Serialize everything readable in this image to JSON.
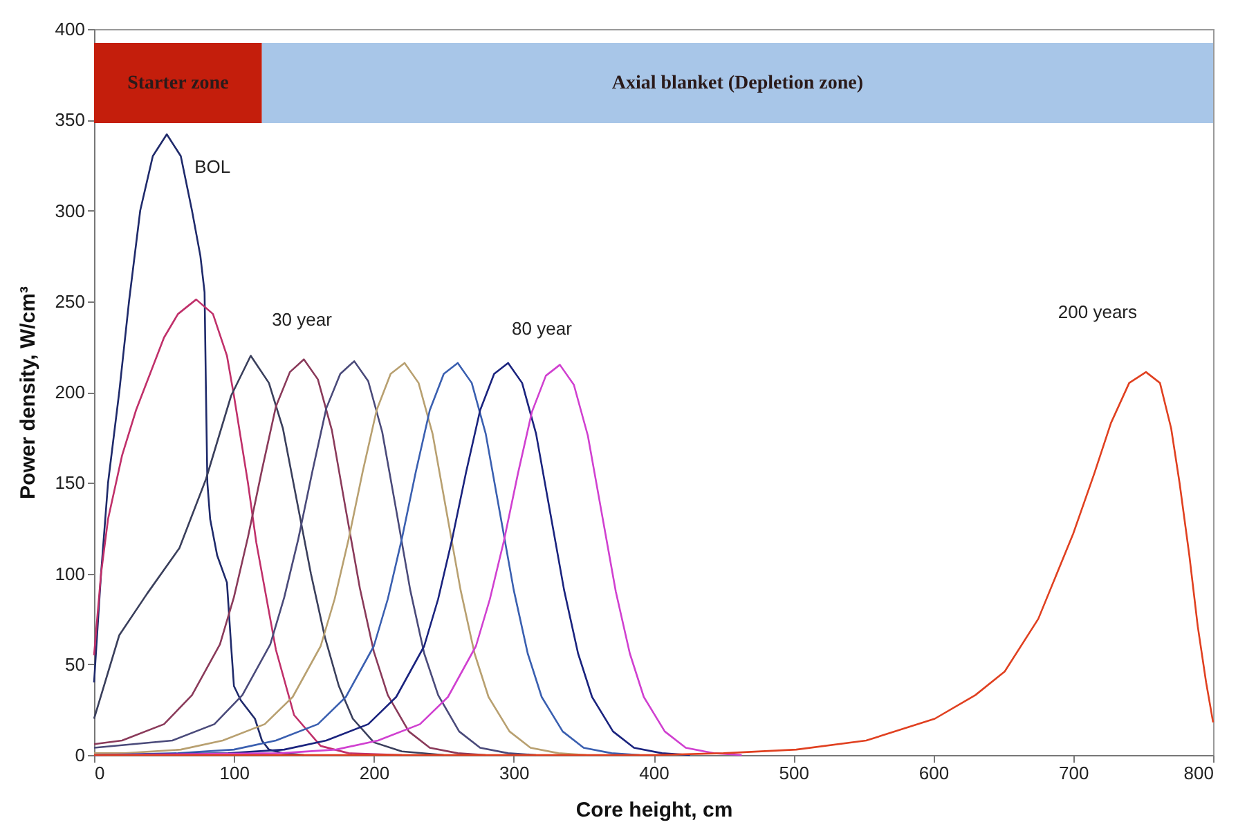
{
  "chart_data": {
    "type": "line",
    "xlabel": "Core height, cm",
    "ylabel": "Power density, W/cm³",
    "xlim": [
      0,
      800
    ],
    "xticks": [
      0,
      100,
      200,
      300,
      400,
      500,
      600,
      700,
      800
    ],
    "ylim": [
      0,
      400
    ],
    "yticks": [
      0,
      50,
      100,
      150,
      200,
      250,
      300,
      350,
      400
    ],
    "grid": false,
    "marker": "none",
    "line_style": "solid",
    "bands": [
      {
        "axis": "x",
        "from": 0,
        "to": 120,
        "label": "Starter zone",
        "color": "#c41e0c"
      },
      {
        "axis": "x",
        "from": 120,
        "to": 800,
        "label": "Axial blanket (Depletion zone)",
        "color": "#a8c6e8"
      }
    ],
    "annotations": [
      {
        "text": "BOL",
        "x": 52,
        "y": 342
      },
      {
        "text": "30 year",
        "x": 112,
        "y": 220
      },
      {
        "text": "80 year",
        "x": 333,
        "y": 215
      },
      {
        "text": "200 years",
        "x": 752,
        "y": 211
      }
    ],
    "series": [
      {
        "color": "#1f2a6b",
        "x": [
          0,
          5,
          10,
          18,
          25,
          33,
          42,
          52,
          62,
          70,
          76,
          79,
          80,
          81,
          83,
          88,
          95,
          98,
          100,
          105,
          115,
          120,
          125,
          135,
          150
        ],
        "values": [
          40,
          100,
          150,
          200,
          250,
          300,
          330,
          342,
          330,
          300,
          275,
          255,
          200,
          150,
          130,
          110,
          95,
          60,
          38,
          30,
          20,
          8,
          3,
          1,
          0
        ]
      },
      {
        "color": "#c0306a",
        "x": [
          0,
          5,
          10,
          20,
          30,
          40,
          50,
          60,
          73,
          85,
          95,
          100,
          110,
          116,
          130,
          143,
          162,
          182,
          220
        ],
        "values": [
          55,
          100,
          130,
          165,
          190,
          210,
          230,
          243,
          251,
          243,
          220,
          198,
          150,
          117,
          58,
          22,
          5,
          1,
          0
        ]
      },
      {
        "color": "#3a3f5c",
        "x": [
          0,
          18,
          38,
          61,
          80,
          98,
          112,
          125,
          135,
          145,
          155,
          165,
          175,
          185,
          200,
          220,
          250
        ],
        "values": [
          20,
          66,
          89,
          114,
          152,
          198,
          220,
          205,
          180,
          140,
          100,
          65,
          38,
          20,
          7,
          2,
          0
        ]
      },
      {
        "color": "#8a3a5a",
        "x": [
          0,
          20,
          50,
          70,
          90,
          100,
          110,
          120,
          130,
          140,
          150,
          160,
          170,
          180,
          190,
          200,
          210,
          225,
          240,
          260,
          280
        ],
        "values": [
          6,
          8,
          17,
          33,
          61,
          87,
          120,
          157,
          192,
          211,
          218,
          207,
          179,
          135,
          92,
          57,
          33,
          13,
          4,
          1,
          0
        ]
      },
      {
        "color": "#4a4a7a",
        "x": [
          0,
          56,
          86,
          106,
          126,
          136,
          146,
          156,
          166,
          176,
          186,
          196,
          206,
          216,
          226,
          236,
          246,
          261,
          276,
          296,
          316
        ],
        "values": [
          4,
          8,
          17,
          33,
          61,
          87,
          119,
          156,
          191,
          210,
          217,
          206,
          178,
          135,
          91,
          56,
          33,
          13,
          4,
          1,
          0
        ]
      },
      {
        "color": "#b8a070",
        "x": [
          0,
          22,
          62,
          92,
          122,
          142,
          162,
          172,
          182,
          192,
          202,
          212,
          222,
          232,
          242,
          252,
          262,
          272,
          282,
          297,
          312,
          332,
          352
        ],
        "values": [
          1,
          1,
          3,
          8,
          17,
          32,
          60,
          86,
          119,
          156,
          190,
          210,
          216,
          205,
          177,
          134,
          91,
          56,
          32,
          13,
          4,
          1,
          0
        ]
      },
      {
        "color": "#3a5fb0",
        "x": [
          0,
          60,
          100,
          130,
          160,
          180,
          200,
          210,
          220,
          230,
          240,
          250,
          260,
          270,
          280,
          290,
          300,
          310,
          320,
          335,
          350,
          370,
          390
        ],
        "values": [
          0,
          1,
          3,
          8,
          17,
          32,
          60,
          86,
          119,
          156,
          190,
          210,
          216,
          205,
          177,
          134,
          91,
          56,
          32,
          13,
          4,
          1,
          0
        ]
      },
      {
        "color": "#1a237e",
        "x": [
          0,
          96,
          136,
          166,
          196,
          216,
          236,
          246,
          256,
          266,
          276,
          286,
          296,
          306,
          316,
          326,
          336,
          346,
          356,
          371,
          386,
          406,
          426
        ],
        "values": [
          0,
          1,
          3,
          8,
          17,
          32,
          60,
          86,
          119,
          156,
          190,
          210,
          216,
          205,
          177,
          134,
          91,
          56,
          32,
          13,
          4,
          1,
          0
        ]
      },
      {
        "color": "#d040d0",
        "x": [
          0,
          133,
          173,
          203,
          233,
          253,
          273,
          283,
          293,
          303,
          313,
          323,
          333,
          343,
          353,
          363,
          373,
          383,
          393,
          408,
          423,
          443,
          463
        ],
        "values": [
          0,
          1,
          3,
          8,
          17,
          32,
          60,
          86,
          118,
          155,
          189,
          209,
          215,
          204,
          176,
          133,
          90,
          56,
          32,
          13,
          4,
          1,
          0
        ]
      },
      {
        "color": "#e04020",
        "x": [
          0,
          400,
          450,
          502,
          552,
          601,
          630,
          651,
          675,
          700,
          715,
          727,
          740,
          752,
          762,
          770,
          776,
          783,
          789,
          795,
          800
        ],
        "values": [
          0,
          0,
          1,
          3,
          8,
          20,
          33,
          46,
          75,
          122,
          155,
          183,
          205,
          211,
          205,
          180,
          150,
          110,
          71,
          40,
          18
        ]
      }
    ]
  }
}
